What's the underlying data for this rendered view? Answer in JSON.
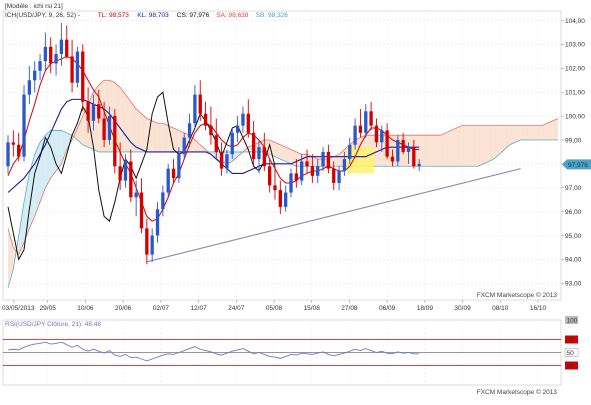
{
  "header": {
    "template": "[Modèle : ichi rsi 21]",
    "legend": [
      {
        "text": "ICH(USD/JPY, 9, 26, 52) -",
        "color": "#333333"
      },
      {
        "text": "TL: 98,573",
        "color": "#d40000"
      },
      {
        "text": "KL: 98,703",
        "color": "#1a1a9e"
      },
      {
        "text": "CS: 97,976",
        "color": "#111111"
      },
      {
        "text": "SA: 98,638",
        "color": "#e0463c"
      },
      {
        "text": "SB: 98,326",
        "color": "#4aa3c8"
      }
    ]
  },
  "footer_main": "FXCM Marketscope © 2013",
  "footer_rsi": "FXCM Marketscope © 2013",
  "rsi_header": "RSI(USD/JPY Clôture, 21): 48,48",
  "last_price": "97,976",
  "colors": {
    "bull": "#2a58c8",
    "bear": "#d40000",
    "tenkan": "#d40000",
    "kijun": "#1a1a9e",
    "chikou": "#111111",
    "senkou_a": "#e0463c",
    "senkou_b": "#4aa3c8",
    "cloud_bull": "#fbe3d3",
    "cloud_bear": "#d6ecf5",
    "trendline": "#8888b0",
    "highlight": "#fff36b",
    "rsi_line": "#6f78c4",
    "rsi_level": "#d40000"
  },
  "chart_data": [
    {
      "type": "candlestick",
      "title": "USD/JPY Ichimoku (9, 26, 52)",
      "x_tick_labels": [
        "03/05/2013",
        "29/05",
        "10/06",
        "20/06",
        "02/07",
        "12/07",
        "24/07",
        "05/08",
        "15/08",
        "27/08",
        "06/09",
        "18/09",
        "30/09",
        "08/10",
        "16/10"
      ],
      "y_tick_labels": [
        "104,00",
        "103,00",
        "102,00",
        "101,00",
        "100,00",
        "99,00",
        "98,00",
        "97,00",
        "96,00",
        "95,00",
        "94,00",
        "93,00"
      ],
      "ylim": [
        92.3,
        104.4
      ],
      "candles_ohlc": [
        [
          97.9,
          99.2,
          97.6,
          98.9
        ],
        [
          98.9,
          99.4,
          98.3,
          98.8
        ],
        [
          98.8,
          99.3,
          98.1,
          98.3
        ],
        [
          98.3,
          101.3,
          98.1,
          100.9
        ],
        [
          100.9,
          102.1,
          100.5,
          101.5
        ],
        [
          101.5,
          102.3,
          101.0,
          101.9
        ],
        [
          101.9,
          102.6,
          101.5,
          102.3
        ],
        [
          102.3,
          103.5,
          101.9,
          102.9
        ],
        [
          102.9,
          103.3,
          101.8,
          102.2
        ],
        [
          102.2,
          103.0,
          101.7,
          102.6
        ],
        [
          102.6,
          103.9,
          102.1,
          103.2
        ],
        [
          103.2,
          103.8,
          102.4,
          102.5
        ],
        [
          102.5,
          103.2,
          101.0,
          101.4
        ],
        [
          101.4,
          102.9,
          101.2,
          102.7
        ],
        [
          102.7,
          103.0,
          100.2,
          100.6
        ],
        [
          100.6,
          101.2,
          99.3,
          99.8
        ],
        [
          99.8,
          100.9,
          99.4,
          100.5
        ],
        [
          100.5,
          101.1,
          99.7,
          99.9
        ],
        [
          99.9,
          100.6,
          98.7,
          99.0
        ],
        [
          99.0,
          100.4,
          98.8,
          100.0
        ],
        [
          100.0,
          100.3,
          97.6,
          97.9
        ],
        [
          97.9,
          98.9,
          96.9,
          97.3
        ],
        [
          97.3,
          98.4,
          97.0,
          98.1
        ],
        [
          98.1,
          98.6,
          96.4,
          96.6
        ],
        [
          96.6,
          97.3,
          95.8,
          96.8
        ],
        [
          96.8,
          97.4,
          95.1,
          95.3
        ],
        [
          95.3,
          95.7,
          93.8,
          94.2
        ],
        [
          94.2,
          95.3,
          93.9,
          95.0
        ],
        [
          95.0,
          96.4,
          94.7,
          96.1
        ],
        [
          96.1,
          97.1,
          95.8,
          96.8
        ],
        [
          96.8,
          98.0,
          96.6,
          97.8
        ],
        [
          97.8,
          98.2,
          97.2,
          97.4
        ],
        [
          97.4,
          98.7,
          97.2,
          98.4
        ],
        [
          98.4,
          99.3,
          98.2,
          99.1
        ],
        [
          99.1,
          100.1,
          98.7,
          99.7
        ],
        [
          99.7,
          101.3,
          99.5,
          100.9
        ],
        [
          100.9,
          101.5,
          99.8,
          100.1
        ],
        [
          100.1,
          100.6,
          99.4,
          99.6
        ],
        [
          99.6,
          100.4,
          98.8,
          99.2
        ],
        [
          99.2,
          99.9,
          98.2,
          98.5
        ],
        [
          98.5,
          98.9,
          97.5,
          97.8
        ],
        [
          97.8,
          98.6,
          97.6,
          98.4
        ],
        [
          98.4,
          99.5,
          98.2,
          99.3
        ],
        [
          99.3,
          100.0,
          98.9,
          99.6
        ],
        [
          99.6,
          100.4,
          99.3,
          100.1
        ],
        [
          100.1,
          100.7,
          99.1,
          99.3
        ],
        [
          99.3,
          99.8,
          97.9,
          98.2
        ],
        [
          98.2,
          99.0,
          97.6,
          98.7
        ],
        [
          98.7,
          99.3,
          97.7,
          97.9
        ],
        [
          97.9,
          98.2,
          96.8,
          97.1
        ],
        [
          97.1,
          97.9,
          96.5,
          96.9
        ],
        [
          96.9,
          97.3,
          95.9,
          96.2
        ],
        [
          96.2,
          97.1,
          96.0,
          96.8
        ],
        [
          96.8,
          97.8,
          96.6,
          97.6
        ],
        [
          97.6,
          98.2,
          97.0,
          97.3
        ],
        [
          97.3,
          98.4,
          97.1,
          98.1
        ],
        [
          98.1,
          98.6,
          97.6,
          97.9
        ],
        [
          97.9,
          98.4,
          97.2,
          97.5
        ],
        [
          97.5,
          98.2,
          97.2,
          97.9
        ],
        [
          97.9,
          98.7,
          97.7,
          98.5
        ],
        [
          98.5,
          98.8,
          97.6,
          97.8
        ],
        [
          97.8,
          98.1,
          96.9,
          97.2
        ],
        [
          97.2,
          97.9,
          96.9,
          97.7
        ],
        [
          97.7,
          98.5,
          97.5,
          98.2
        ],
        [
          98.2,
          99.1,
          98.0,
          98.8
        ],
        [
          98.8,
          99.9,
          98.6,
          99.6
        ],
        [
          99.6,
          100.3,
          99.1,
          99.3
        ],
        [
          99.3,
          100.5,
          99.1,
          100.2
        ],
        [
          100.2,
          100.6,
          99.4,
          99.6
        ],
        [
          99.6,
          99.9,
          98.7,
          98.9
        ],
        [
          98.9,
          99.6,
          98.5,
          99.4
        ],
        [
          99.4,
          99.7,
          98.2,
          98.3
        ],
        [
          98.3,
          98.6,
          97.9,
          98.1
        ],
        [
          98.1,
          99.2,
          97.9,
          99.0
        ],
        [
          99.0,
          99.3,
          98.4,
          98.5
        ],
        [
          98.5,
          98.9,
          98.0,
          98.7
        ],
        [
          98.7,
          99.0,
          97.8,
          97.9
        ],
        [
          97.9,
          98.2,
          97.7,
          98.0
        ]
      ],
      "tenkan_sen": [
        97.5,
        98.0,
        98.3,
        99.0,
        99.8,
        100.5,
        101.3,
        101.9,
        102.2,
        102.3,
        102.4,
        102.5,
        102.4,
        102.2,
        101.9,
        101.5,
        101.1,
        100.8,
        100.2,
        99.6,
        99.0,
        98.5,
        98.0,
        97.6,
        97.0,
        96.4,
        95.8,
        95.6,
        95.7,
        96.1,
        96.6,
        97.2,
        97.6,
        98.2,
        98.8,
        99.3,
        99.6,
        99.7,
        99.6,
        99.3,
        99.0,
        98.8,
        98.7,
        98.8,
        99.1,
        99.3,
        99.2,
        99.0,
        98.7,
        98.2,
        97.8,
        97.4,
        97.2,
        97.2,
        97.3,
        97.5,
        97.6,
        97.7,
        97.7,
        97.8,
        97.9,
        97.8,
        97.7,
        97.7,
        97.9,
        98.3,
        98.8,
        99.2,
        99.5,
        99.5,
        99.4,
        99.2,
        99.0,
        98.9,
        98.8,
        98.7,
        98.6,
        98.6
      ],
      "kijun_sen": [
        96.8,
        97.0,
        97.2,
        97.4,
        97.7,
        98.0,
        98.4,
        98.8,
        99.3,
        99.8,
        100.3,
        100.6,
        100.7,
        100.7,
        100.7,
        100.6,
        100.5,
        100.4,
        100.3,
        100.1,
        99.8,
        99.5,
        99.2,
        98.9,
        98.7,
        98.6,
        98.5,
        98.5,
        98.5,
        98.5,
        98.5,
        98.5,
        98.5,
        98.5,
        98.5,
        98.5,
        98.5,
        98.5,
        98.4,
        98.2,
        98.0,
        97.8,
        97.6,
        97.6,
        97.6,
        97.7,
        97.8,
        97.9,
        98.0,
        98.0,
        98.0,
        98.0,
        98.0,
        98.0,
        98.1,
        98.2,
        98.3,
        98.3,
        98.3,
        98.3,
        98.3,
        98.3,
        98.3,
        98.3,
        98.3,
        98.3,
        98.3,
        98.3,
        98.4,
        98.5,
        98.6,
        98.7,
        98.7,
        98.7,
        98.7,
        98.7,
        98.7,
        98.7
      ],
      "chikou_span": [
        96.2,
        95.1,
        94.0,
        94.4,
        96.1,
        97.6,
        98.3,
        99.1,
        98.7,
        98.0,
        97.6,
        98.4,
        99.2,
        99.7,
        100.4,
        100.0,
        98.7,
        96.9,
        95.8,
        95.6,
        96.4,
        97.4,
        98.2,
        97.9,
        97.4,
        98.0,
        98.6,
        100.1,
        100.8,
        101.0,
        99.7,
        98.6,
        98.4,
        98.5,
        99.0,
        99.5,
        100.1,
        99.8,
        99.4,
        98.9,
        98.3,
        98.9,
        99.5,
        99.6,
        99.1,
        98.6,
        97.9,
        97.7,
        98.1,
        98.8,
        97.9
      ],
      "senkou_a": [
        95.3,
        94.5,
        94.2,
        94.7,
        95.3,
        95.8,
        96.4,
        97.0,
        97.4,
        97.7,
        98.0,
        98.6,
        99.0,
        99.5,
        100.0,
        100.5,
        101.0,
        101.3,
        101.5,
        101.5,
        101.4,
        101.2,
        100.9,
        100.6,
        100.3,
        100.1,
        99.9,
        99.8,
        99.7,
        99.7,
        99.6,
        99.5,
        99.4,
        99.3,
        99.2,
        99.0,
        98.8,
        98.6,
        98.4,
        98.2,
        98.1,
        98.0,
        98.1,
        98.3,
        98.5,
        98.7,
        98.8,
        98.9,
        99.0,
        99.0,
        98.9,
        98.8,
        98.7,
        98.6,
        98.5,
        98.4,
        98.4,
        98.3,
        98.2,
        98.2,
        98.2,
        98.3,
        98.4,
        98.6,
        98.8,
        99.0,
        99.1,
        99.2,
        99.2,
        99.2,
        99.2,
        99.2,
        99.2,
        99.2,
        99.2,
        99.2,
        99.2,
        99.2,
        99.2,
        99.2,
        99.2,
        99.2,
        99.3,
        99.4,
        99.5,
        99.6,
        99.6,
        99.6,
        99.6,
        99.6,
        99.6,
        99.6,
        99.6,
        99.6,
        99.6,
        99.6,
        99.6,
        99.6,
        99.6,
        99.6,
        99.6,
        99.7,
        99.8,
        99.9
      ],
      "senkou_b": [
        92.8,
        93.6,
        95.0,
        96.4,
        97.6,
        98.4,
        98.9,
        99.2,
        99.4,
        99.4,
        99.4,
        99.3,
        99.2,
        99.0,
        98.8,
        98.7,
        98.6,
        98.5,
        98.5,
        98.5,
        98.5,
        98.5,
        98.5,
        98.5,
        98.5,
        98.5,
        98.5,
        98.5,
        98.5,
        98.5,
        98.5,
        98.5,
        98.5,
        98.5,
        98.5,
        98.5,
        98.5,
        98.5,
        98.5,
        98.5,
        98.5,
        98.5,
        98.5,
        98.5,
        98.5,
        98.5,
        98.5,
        98.5,
        98.5,
        98.4,
        98.3,
        98.2,
        98.1,
        98.0,
        97.9,
        97.9,
        97.9,
        97.9,
        97.9,
        97.9,
        97.9,
        97.9,
        97.9,
        97.9,
        97.9,
        97.9,
        97.9,
        97.9,
        97.9,
        97.9,
        97.9,
        97.9,
        97.9,
        97.9,
        97.9,
        97.9,
        97.9,
        97.9,
        97.9,
        97.9,
        97.9,
        97.9,
        97.9,
        97.9,
        97.9,
        97.9,
        97.9,
        97.9,
        97.9,
        98.0,
        98.1,
        98.2,
        98.4,
        98.6,
        98.8,
        98.9,
        99.0,
        99.0,
        99.0,
        99.0,
        99.0,
        99.0,
        99.0,
        99.0
      ],
      "trendline": [
        [
          26,
          93.9
        ],
        [
          96,
          97.8
        ]
      ],
      "highlight_zone": {
        "from_index": 64,
        "to_index": 68,
        "y_range": [
          97.6,
          98.7
        ]
      }
    },
    {
      "type": "line",
      "title": "RSI(USD/JPY Clôture, 21)",
      "y_tick_labels": [
        "100",
        "70",
        "50",
        "30"
      ],
      "ylim": [
        0,
        100
      ],
      "levels": [
        70,
        50,
        30
      ],
      "values": [
        54,
        55,
        54,
        58,
        61,
        63,
        64,
        66,
        63,
        64,
        66,
        62,
        58,
        61,
        55,
        52,
        55,
        52,
        49,
        53,
        46,
        44,
        47,
        42,
        43,
        40,
        37,
        40,
        43,
        46,
        48,
        47,
        50,
        53,
        56,
        59,
        55,
        53,
        51,
        48,
        46,
        49,
        52,
        54,
        56,
        52,
        48,
        50,
        47,
        44,
        43,
        41,
        44,
        47,
        46,
        49,
        48,
        47,
        49,
        51,
        47,
        45,
        47,
        49,
        52,
        55,
        53,
        56,
        53,
        50,
        52,
        49,
        48,
        51,
        49,
        50,
        48,
        48
      ]
    }
  ]
}
